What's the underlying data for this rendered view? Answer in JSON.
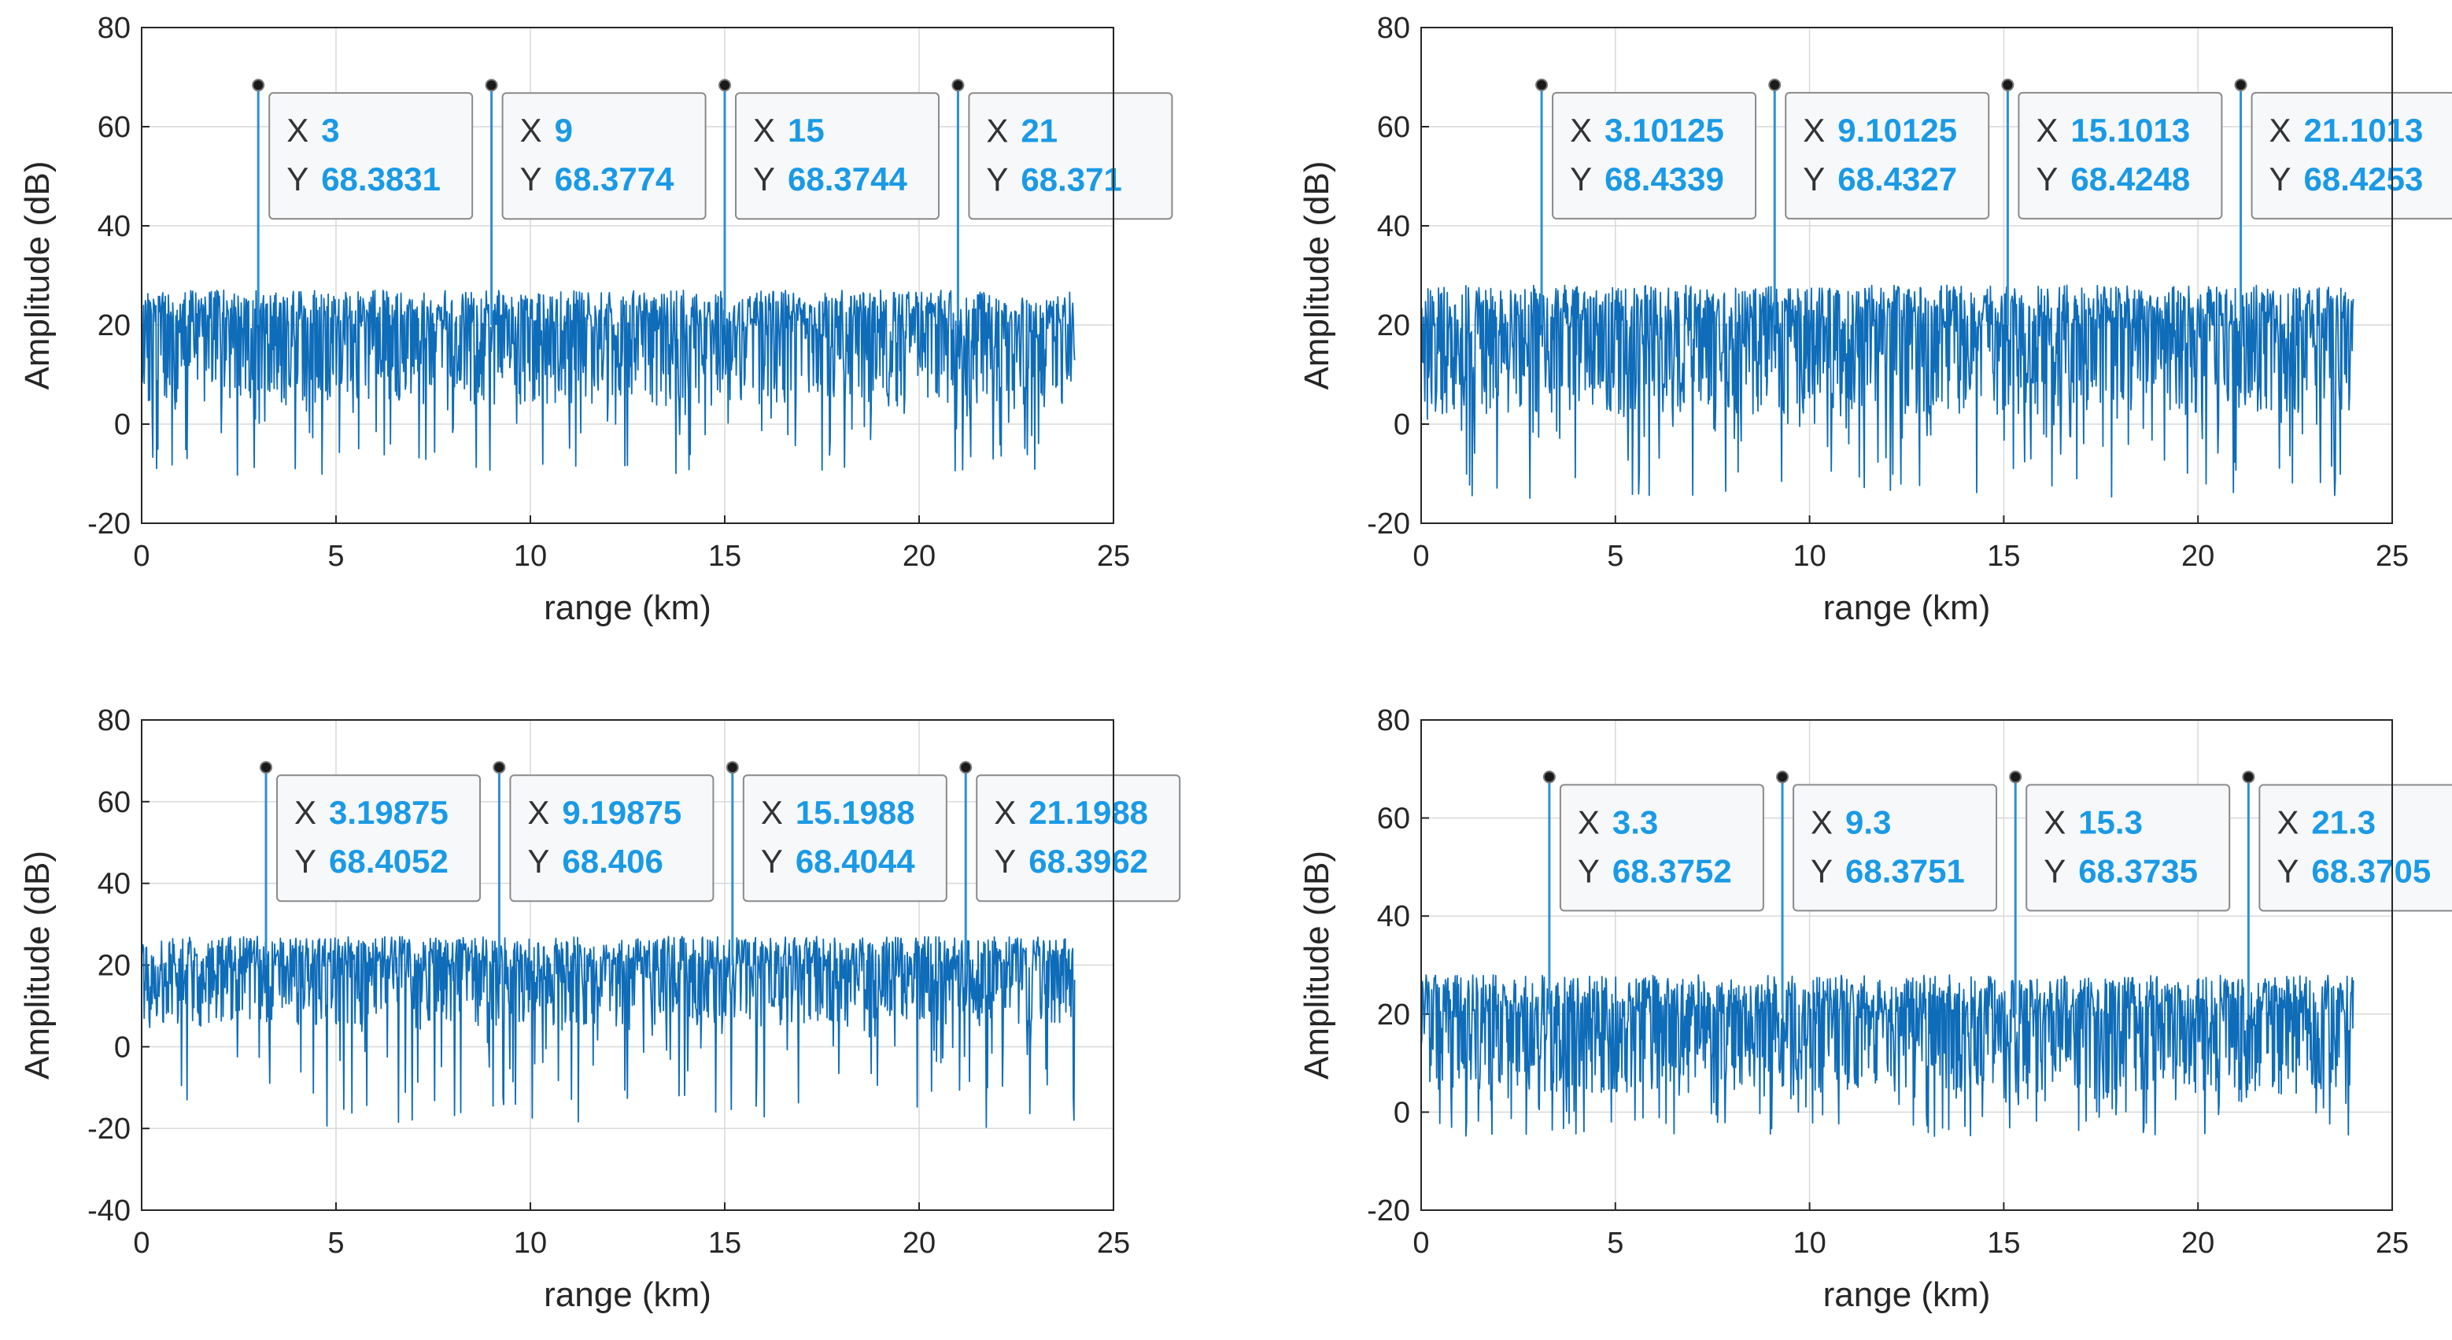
{
  "chart_data": [
    {
      "type": "line",
      "title": "",
      "xlabel": "range (km)",
      "ylabel": "Amplitude (dB)",
      "xlim": [
        0,
        25
      ],
      "ylim": [
        -20,
        80
      ],
      "xticks": [
        "0",
        "5",
        "10",
        "15",
        "20",
        "25"
      ],
      "yticks": [
        "-20",
        "0",
        "20",
        "40",
        "60",
        "80"
      ],
      "grid": true,
      "noise": {
        "x_end": 24,
        "mean": 20,
        "top": 27,
        "bottom": 4,
        "min_dip": -11
      },
      "peaks": [
        {
          "x": 3,
          "y": 68.3831,
          "x_label": "3",
          "y_label": "68.3831"
        },
        {
          "x": 9,
          "y": 68.3774,
          "x_label": "9",
          "y_label": "68.3774"
        },
        {
          "x": 15,
          "y": 68.3744,
          "x_label": "15",
          "y_label": "68.3744"
        },
        {
          "x": 21,
          "y": 68.371,
          "x_label": "21",
          "y_label": "68.371"
        }
      ]
    },
    {
      "type": "line",
      "title": "",
      "xlabel": "range (km)",
      "ylabel": "Amplitude (dB)",
      "xlim": [
        0,
        25
      ],
      "ylim": [
        -20,
        80
      ],
      "xticks": [
        "0",
        "5",
        "10",
        "15",
        "20",
        "25"
      ],
      "yticks": [
        "-20",
        "0",
        "20",
        "40",
        "60",
        "80"
      ],
      "grid": true,
      "noise": {
        "x_end": 24,
        "mean": 20,
        "top": 28,
        "bottom": 2,
        "min_dip": -15
      },
      "peaks": [
        {
          "x": 3.10125,
          "y": 68.4339,
          "x_label": "3.10125",
          "y_label": "68.4339"
        },
        {
          "x": 9.10125,
          "y": 68.4327,
          "x_label": "9.10125",
          "y_label": "68.4327"
        },
        {
          "x": 15.1013,
          "y": 68.4248,
          "x_label": "15.1013",
          "y_label": "68.4248"
        },
        {
          "x": 21.1013,
          "y": 68.4253,
          "x_label": "21.1013",
          "y_label": "68.4253"
        }
      ]
    },
    {
      "type": "line",
      "title": "",
      "xlabel": "range (km)",
      "ylabel": "Amplitude (dB)",
      "xlim": [
        0,
        25
      ],
      "ylim": [
        -40,
        80
      ],
      "xticks": [
        "0",
        "5",
        "10",
        "15",
        "20",
        "25"
      ],
      "yticks": [
        "-40",
        "-20",
        "0",
        "20",
        "40",
        "60",
        "80"
      ],
      "grid": true,
      "noise": {
        "x_end": 24,
        "mean": 20,
        "top": 27,
        "bottom": 5,
        "min_dip": -21
      },
      "peaks": [
        {
          "x": 3.19875,
          "y": 68.4052,
          "x_label": "3.19875",
          "y_label": "68.4052"
        },
        {
          "x": 9.19875,
          "y": 68.406,
          "x_label": "9.19875",
          "y_label": "68.406"
        },
        {
          "x": 15.1988,
          "y": 68.4044,
          "x_label": "15.1988",
          "y_label": "68.4044"
        },
        {
          "x": 21.1988,
          "y": 68.3962,
          "x_label": "21.1988",
          "y_label": "68.3962"
        }
      ]
    },
    {
      "type": "line",
      "title": "",
      "xlabel": "range (km)",
      "ylabel": "Amplitude (dB)",
      "xlim": [
        0,
        25
      ],
      "ylim": [
        -20,
        80
      ],
      "xticks": [
        "0",
        "5",
        "10",
        "15",
        "20",
        "25"
      ],
      "yticks": [
        "-20",
        "0",
        "20",
        "40",
        "60",
        "80"
      ],
      "grid": true,
      "noise": {
        "x_end": 24,
        "mean": 20,
        "top": 28,
        "bottom": 4,
        "min_dip": -5
      },
      "peaks": [
        {
          "x": 3.3,
          "y": 68.3752,
          "x_label": "3.3",
          "y_label": "68.3752"
        },
        {
          "x": 9.3,
          "y": 68.3751,
          "x_label": "9.3",
          "y_label": "68.3751"
        },
        {
          "x": 15.3,
          "y": 68.3735,
          "x_label": "15.3",
          "y_label": "68.3735"
        },
        {
          "x": 21.3,
          "y": 68.3705,
          "x_label": "21.3",
          "y_label": "68.3705"
        }
      ]
    }
  ],
  "tooltip": {
    "x_key": "X",
    "y_key": "Y"
  },
  "colors": {
    "signal": "#0e6cb8",
    "peak": "#2d8fd5",
    "datatip_value": "#1a9ae6",
    "grid": "#d9d9d9"
  }
}
